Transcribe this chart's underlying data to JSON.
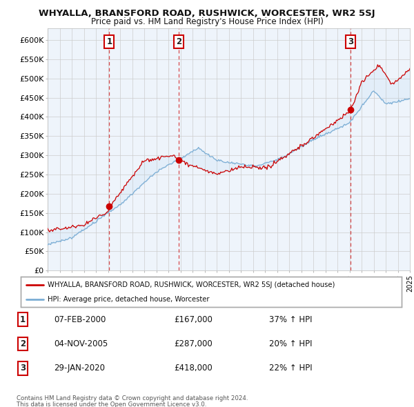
{
  "title": "WHYALLA, BRANSFORD ROAD, RUSHWICK, WORCESTER, WR2 5SJ",
  "subtitle": "Price paid vs. HM Land Registry's House Price Index (HPI)",
  "legend_line1": "WHYALLA, BRANSFORD ROAD, RUSHWICK, WORCESTER, WR2 5SJ (detached house)",
  "legend_line2": "HPI: Average price, detached house, Worcester",
  "footer1": "Contains HM Land Registry data © Crown copyright and database right 2024.",
  "footer2": "This data is licensed under the Open Government Licence v3.0.",
  "sale_color": "#cc0000",
  "hpi_color": "#7aadd4",
  "fill_color": "#ddeeff",
  "vline_color": "#cc0000",
  "background_color": "#ffffff",
  "chart_bg_color": "#eef4fb",
  "grid_color": "#cccccc",
  "ylim": [
    0,
    630000
  ],
  "yticks": [
    0,
    50000,
    100000,
    150000,
    200000,
    250000,
    300000,
    350000,
    400000,
    450000,
    500000,
    550000,
    600000
  ],
  "ytick_labels": [
    "£0",
    "£50K",
    "£100K",
    "£150K",
    "£200K",
    "£250K",
    "£300K",
    "£350K",
    "£400K",
    "£450K",
    "£500K",
    "£550K",
    "£600K"
  ],
  "sale_points": [
    {
      "year": 2000.1,
      "price": 167000,
      "label": "1"
    },
    {
      "year": 2005.84,
      "price": 287000,
      "label": "2"
    },
    {
      "year": 2020.08,
      "price": 418000,
      "label": "3"
    }
  ],
  "table_rows": [
    {
      "num": "1",
      "date": "07-FEB-2000",
      "price": "£167,000",
      "pct": "37% ↑ HPI"
    },
    {
      "num": "2",
      "date": "04-NOV-2005",
      "price": "£287,000",
      "pct": "20% ↑ HPI"
    },
    {
      "num": "3",
      "date": "29-JAN-2020",
      "price": "£418,000",
      "pct": "22% ↑ HPI"
    }
  ]
}
